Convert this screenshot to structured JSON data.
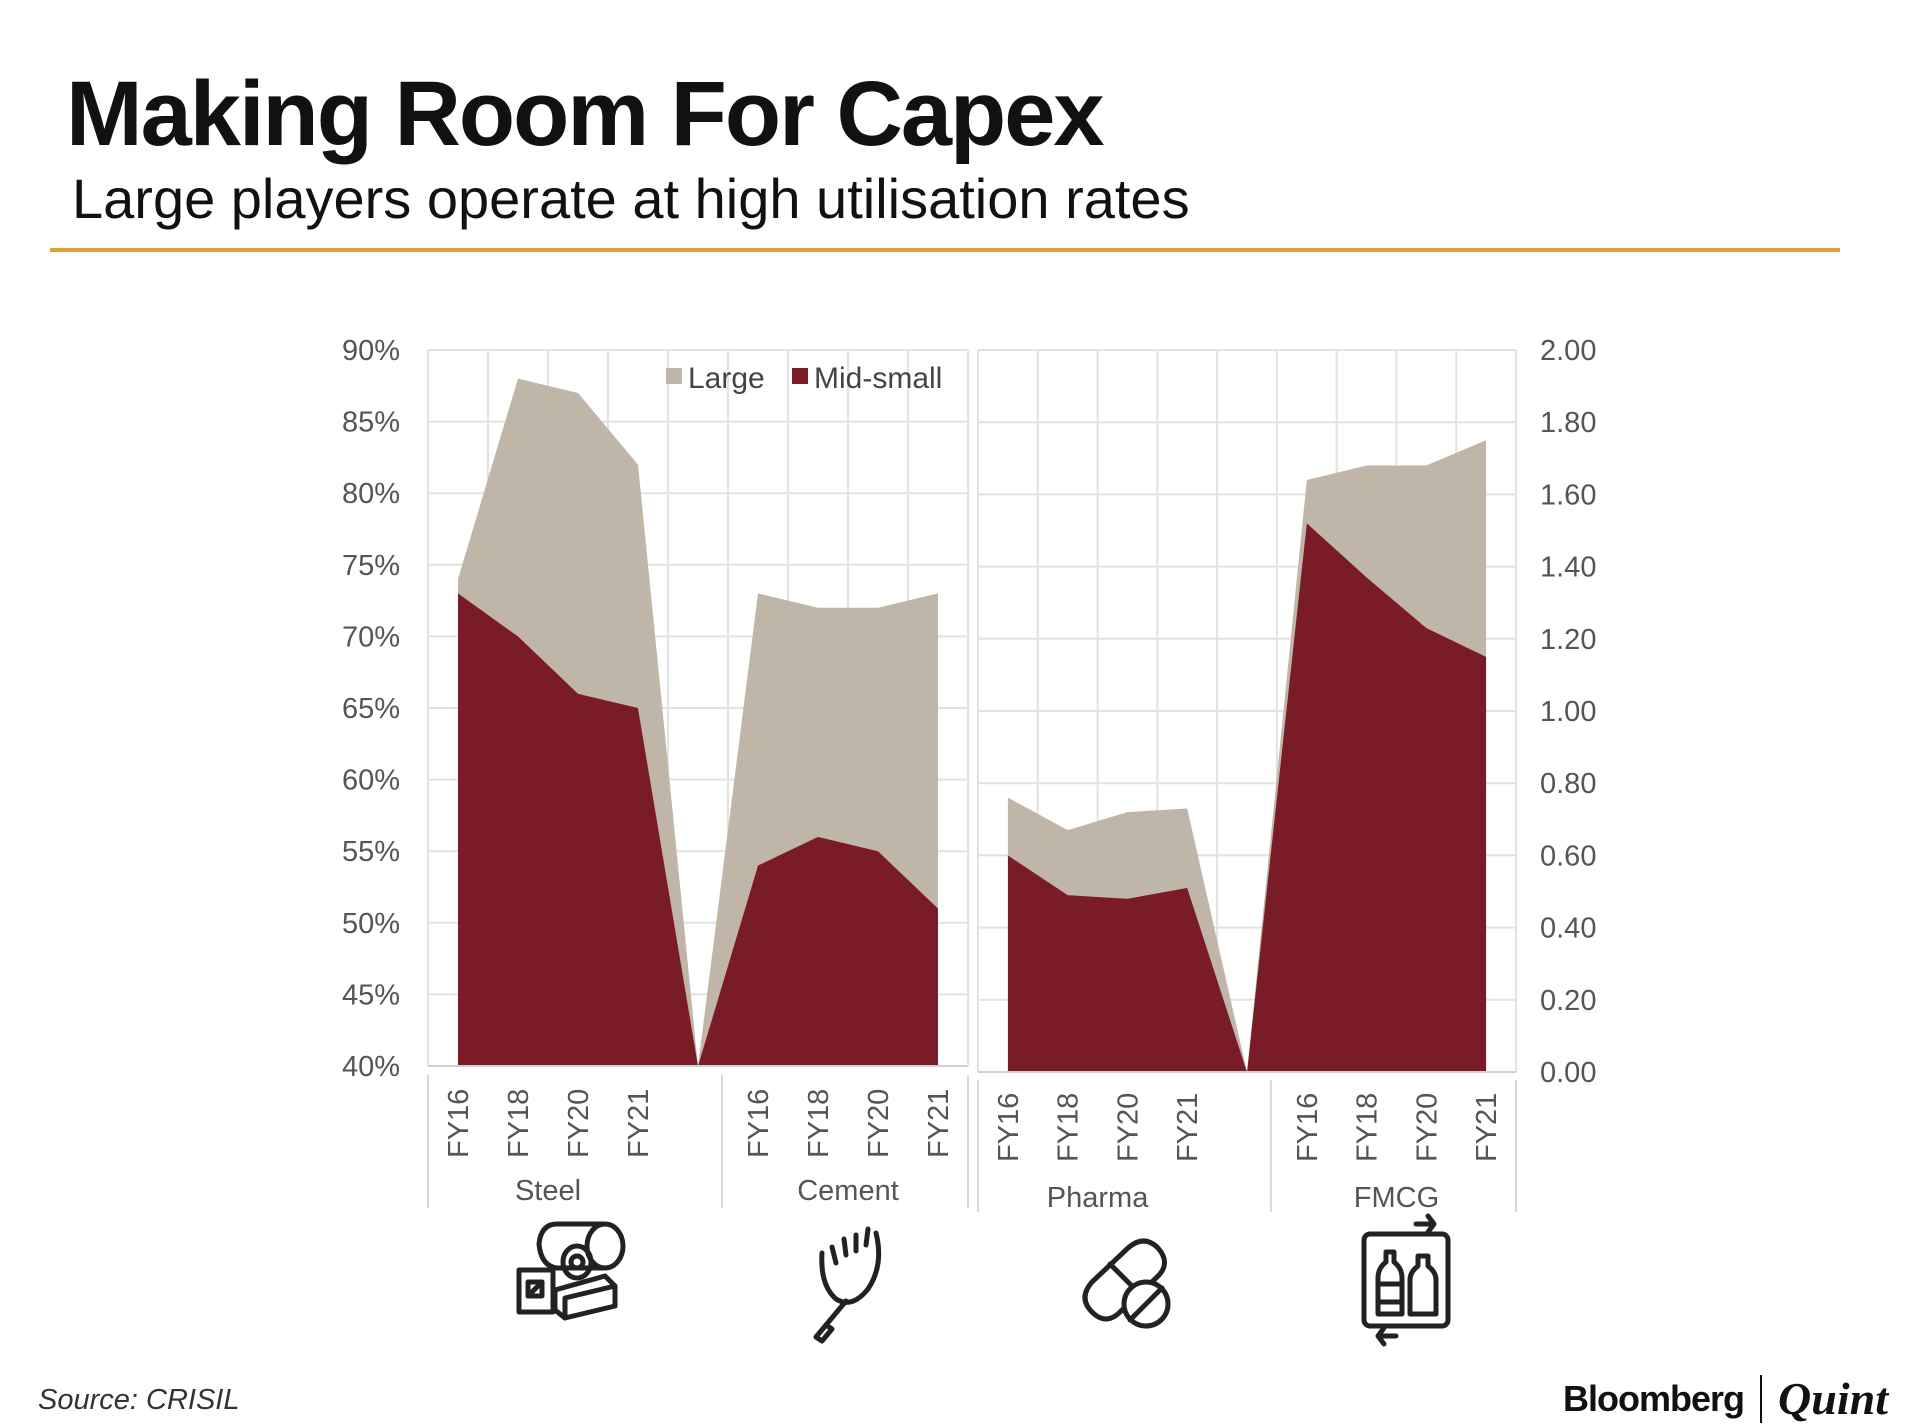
{
  "header": {
    "title": "Making Room For Capex",
    "subtitle": "Large players operate at high utilisation rates"
  },
  "footer": {
    "source": "Source: CRISIL",
    "brand_left": "Bloomberg",
    "brand_right": "Quint"
  },
  "colors": {
    "accent_rule": "#e3a133",
    "large": "#bfb6a8",
    "mid_small": "#7a1c28"
  },
  "chart_data": [
    {
      "type": "area",
      "title": "",
      "axis": "left",
      "y_tick_labels": [
        "40%",
        "45%",
        "50%",
        "55%",
        "60%",
        "65%",
        "70%",
        "75%",
        "80%",
        "85%",
        "90%"
      ],
      "ylim": [
        40,
        90
      ],
      "legend": {
        "placement": "top-right",
        "entries": [
          "Large",
          "Mid-small"
        ]
      },
      "grid": true,
      "groups": [
        {
          "label": "Steel",
          "icon": "steel-icon",
          "categories": [
            "FY16",
            "FY18",
            "FY20",
            "FY21"
          ],
          "series": [
            {
              "name": "Large",
              "values": [
                74,
                88,
                87,
                82
              ]
            },
            {
              "name": "Mid-small",
              "values": [
                73,
                70,
                66,
                65
              ]
            }
          ]
        },
        {
          "label": "Cement",
          "icon": "cement-trowel-icon",
          "categories": [
            "FY16",
            "FY18",
            "FY20",
            "FY21"
          ],
          "series": [
            {
              "name": "Large",
              "values": [
                73,
                72,
                72,
                73
              ]
            },
            {
              "name": "Mid-small",
              "values": [
                54,
                56,
                55,
                51
              ]
            }
          ]
        }
      ]
    },
    {
      "type": "area",
      "title": "",
      "axis": "right",
      "y_tick_labels": [
        "0.00",
        "0.20",
        "0.40",
        "0.60",
        "0.80",
        "1.00",
        "1.20",
        "1.40",
        "1.60",
        "1.80",
        "2.00"
      ],
      "ylim": [
        0,
        2
      ],
      "grid": true,
      "groups": [
        {
          "label": "Pharma",
          "icon": "pill-icon",
          "categories": [
            "FY16",
            "FY18",
            "FY20",
            "FY21"
          ],
          "series": [
            {
              "name": "Large",
              "values": [
                0.76,
                0.67,
                0.72,
                0.73
              ]
            },
            {
              "name": "Mid-small",
              "values": [
                0.6,
                0.49,
                0.48,
                0.51
              ]
            }
          ]
        },
        {
          "label": "FMCG",
          "icon": "fmcg-bottles-icon",
          "categories": [
            "FY16",
            "FY18",
            "FY20",
            "FY21"
          ],
          "series": [
            {
              "name": "Large",
              "values": [
                1.64,
                1.68,
                1.68,
                1.75
              ]
            },
            {
              "name": "Mid-small",
              "values": [
                1.52,
                1.37,
                1.23,
                1.15
              ]
            }
          ]
        }
      ]
    }
  ]
}
